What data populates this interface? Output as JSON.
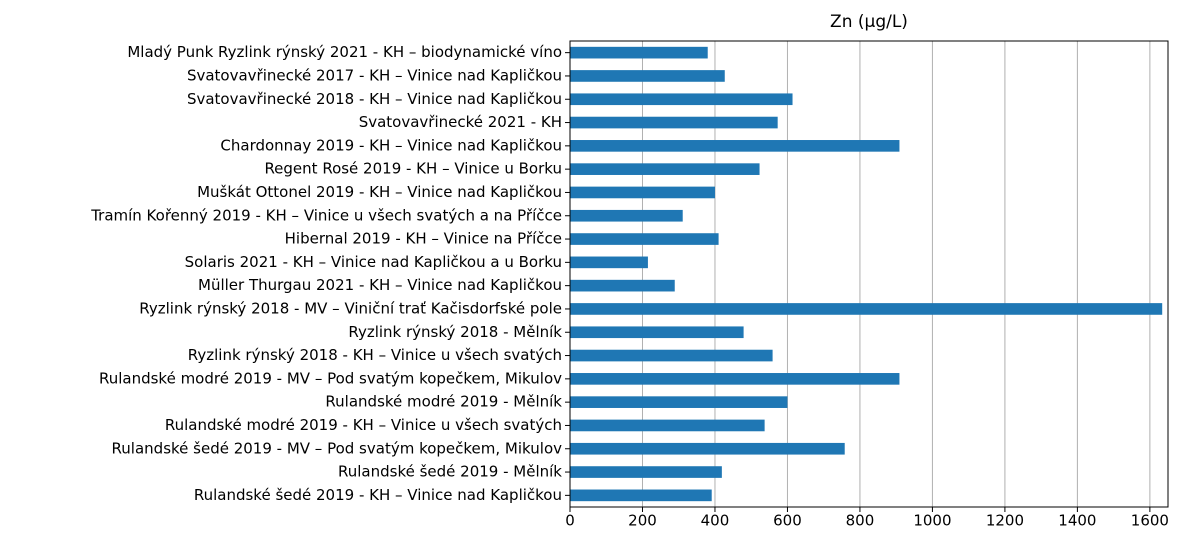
{
  "chart_data": {
    "type": "barh",
    "title": "Zn (µg/L)",
    "categories": [
      "Mladý Punk Ryzlink rýnský 2021 - KH – biodynamické víno",
      "Svatovavřinecké 2017 - KH – Vinice nad Kapličkou",
      "Svatovavřinecké 2018 - KH – Vinice nad Kapličkou",
      "Svatovavřinecké 2021 - KH",
      "Chardonnay 2019 - KH – Vinice nad Kapličkou",
      "Regent Rosé 2019 - KH – Vinice u Borku",
      "Muškát Ottonel 2019 - KH – Vinice nad Kapličkou",
      "Tramín Kořenný 2019 - KH – Vinice u všech svatých a na Příčce",
      "Hibernal 2019 - KH – Vinice na Příčce",
      "Solaris 2021 - KH – Vinice nad Kapličkou a u Borku",
      "Müller Thurgau 2021 - KH – Vinice nad Kapličkou",
      "Ryzlink rýnský 2018 - MV – Viniční trať Kačisdorfské pole",
      "Ryzlink rýnský 2018 - Mělník",
      "Ryzlink rýnský 2018 - KH – Vinice u všech svatých",
      "Rulandské modré 2019 - MV – Pod svatým kopečkem, Mikulov",
      "Rulandské modré 2019 - Mělník",
      "Rulandské modré 2019 - KH – Vinice u všech svatých",
      "Rulandské šedé 2019 - MV – Pod svatým kopečkem, Mikulov",
      "Rulandské šedé 2019 - Mělník",
      "Rulandské šedé 2019 - KH – Vinice nad Kapličkou"
    ],
    "values": [
      380,
      427,
      614,
      573,
      909,
      523,
      400,
      311,
      410,
      215,
      289,
      1634,
      479,
      559,
      909,
      600,
      537,
      758,
      419,
      391
    ],
    "color": "#1f77b4",
    "xlim": [
      0,
      1650
    ],
    "xticks": [
      0,
      200,
      400,
      600,
      800,
      1000,
      1200,
      1400,
      1600
    ],
    "grid": true
  }
}
